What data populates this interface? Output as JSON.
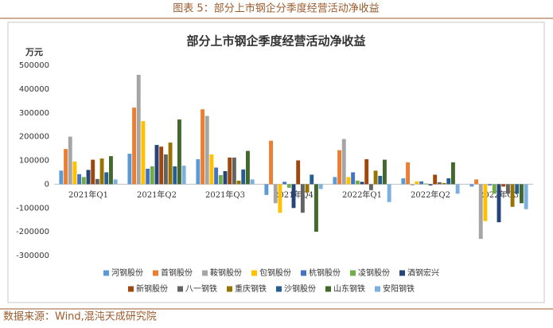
{
  "header": "图表 5：部分上市钢企分季度经营活动净收益",
  "source": "数据来源：Wind,混沌天成研究院",
  "chart_data": {
    "type": "bar",
    "title": "部分上市钢企季度经营活动净收益",
    "y_label": "万元",
    "categories": [
      "2021年Q1",
      "2021年Q2",
      "2021年Q3",
      "2021年Q4",
      "2022年Q1",
      "2022年Q2",
      "2022年Q3"
    ],
    "ylim": [
      -300000,
      500000
    ],
    "yticks": [
      -300000,
      -200000,
      -100000,
      0,
      100000,
      200000,
      300000,
      400000,
      500000
    ],
    "grid": false,
    "legend": "bottom",
    "series": [
      {
        "name": "河钢股份",
        "color": "#5b9bd5",
        "values": [
          57000,
          128000,
          105000,
          -45000,
          30000,
          25000,
          -10000
        ]
      },
      {
        "name": "首钢股份",
        "color": "#ed7d31",
        "values": [
          148000,
          322000,
          315000,
          183000,
          143000,
          92000,
          20000
        ]
      },
      {
        "name": "鞍钢股份",
        "color": "#a5a5a5",
        "values": [
          200000,
          460000,
          287000,
          -80000,
          190000,
          -5000,
          -230000
        ]
      },
      {
        "name": "包钢股份",
        "color": "#ffc000",
        "values": [
          95000,
          265000,
          125000,
          -120000,
          30000,
          12000,
          -155000
        ]
      },
      {
        "name": "杭钢股份",
        "color": "#4472c4",
        "values": [
          42000,
          65000,
          70000,
          10000,
          50000,
          12000,
          -5000
        ]
      },
      {
        "name": "凌钢股份",
        "color": "#70ad47",
        "values": [
          30000,
          75000,
          38000,
          -15000,
          15000,
          3000,
          -40000
        ]
      },
      {
        "name": "酒钢宏兴",
        "color": "#264478",
        "values": [
          60000,
          165000,
          55000,
          -100000,
          10000,
          -5000,
          -160000
        ]
      },
      {
        "name": "新钢股份",
        "color": "#9e480e",
        "values": [
          103000,
          158000,
          112000,
          100000,
          105000,
          40000,
          -10000
        ]
      },
      {
        "name": "八一钢铁",
        "color": "#636363",
        "values": [
          22000,
          125000,
          112000,
          -120000,
          -25000,
          8000,
          -40000
        ]
      },
      {
        "name": "重庆钢铁",
        "color": "#997300",
        "values": [
          108000,
          175000,
          15000,
          -35000,
          57000,
          5000,
          -95000
        ]
      },
      {
        "name": "沙钢股份",
        "color": "#255e91",
        "values": [
          50000,
          75000,
          62000,
          40000,
          35000,
          25000,
          -40000
        ]
      },
      {
        "name": "山东钢铁",
        "color": "#43682b",
        "values": [
          118000,
          272000,
          140000,
          -200000,
          103000,
          92000,
          -80000
        ]
      },
      {
        "name": "安阳钢铁",
        "color": "#7cafdd",
        "values": [
          20000,
          78000,
          20000,
          -20000,
          -75000,
          -40000,
          -105000
        ]
      }
    ]
  }
}
